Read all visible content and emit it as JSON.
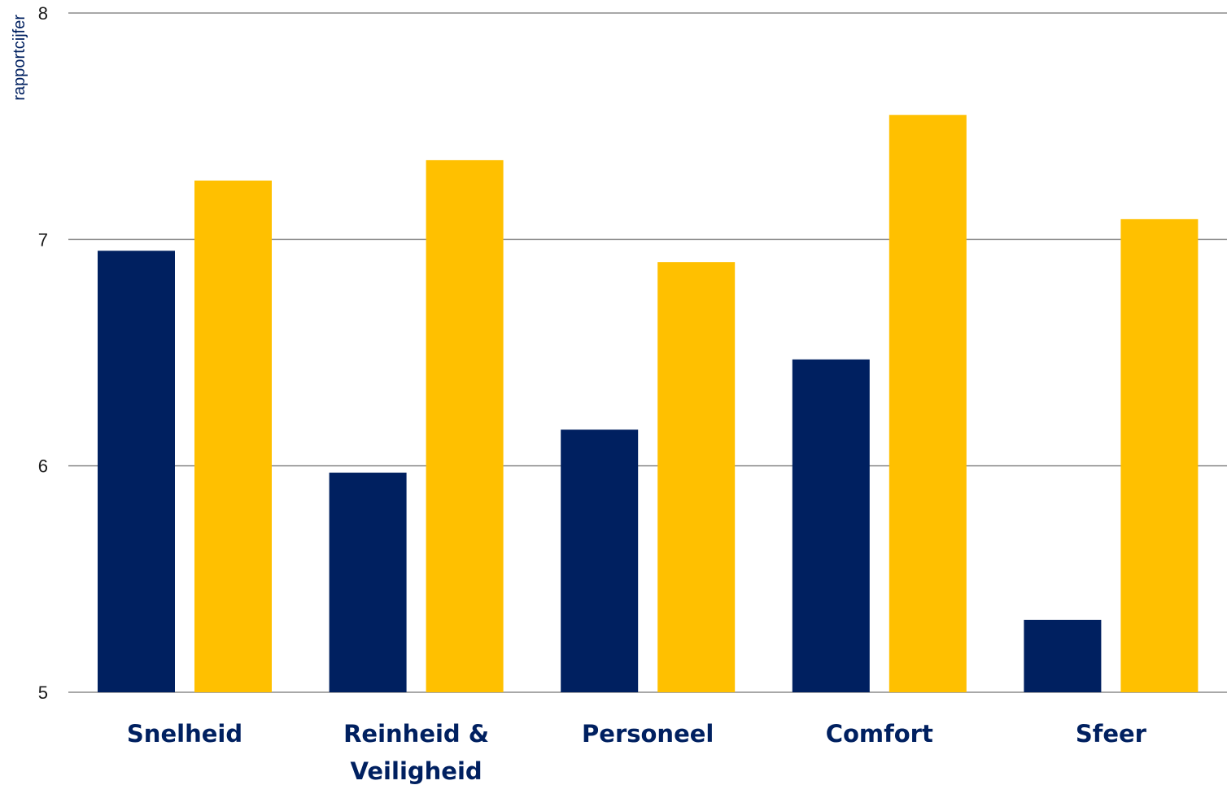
{
  "chart_data": {
    "type": "bar",
    "title": "",
    "xlabel": "",
    "ylabel": "rapportcijfer",
    "ylim": [
      5,
      8
    ],
    "yticks": [
      5,
      6,
      7,
      8
    ],
    "grid": true,
    "legend": "none",
    "categories": [
      [
        "Snelheid"
      ],
      [
        "Reinheid &",
        "Veiligheid"
      ],
      [
        "Personeel"
      ],
      [
        "Comfort"
      ],
      [
        "Sfeer"
      ]
    ],
    "series": [
      {
        "values": [
          6.95,
          5.97,
          6.16,
          6.47,
          5.32
        ],
        "color": "#002060"
      },
      {
        "values": [
          7.26,
          7.35,
          6.9,
          7.55,
          7.09
        ],
        "color": "#FFC000"
      }
    ]
  }
}
